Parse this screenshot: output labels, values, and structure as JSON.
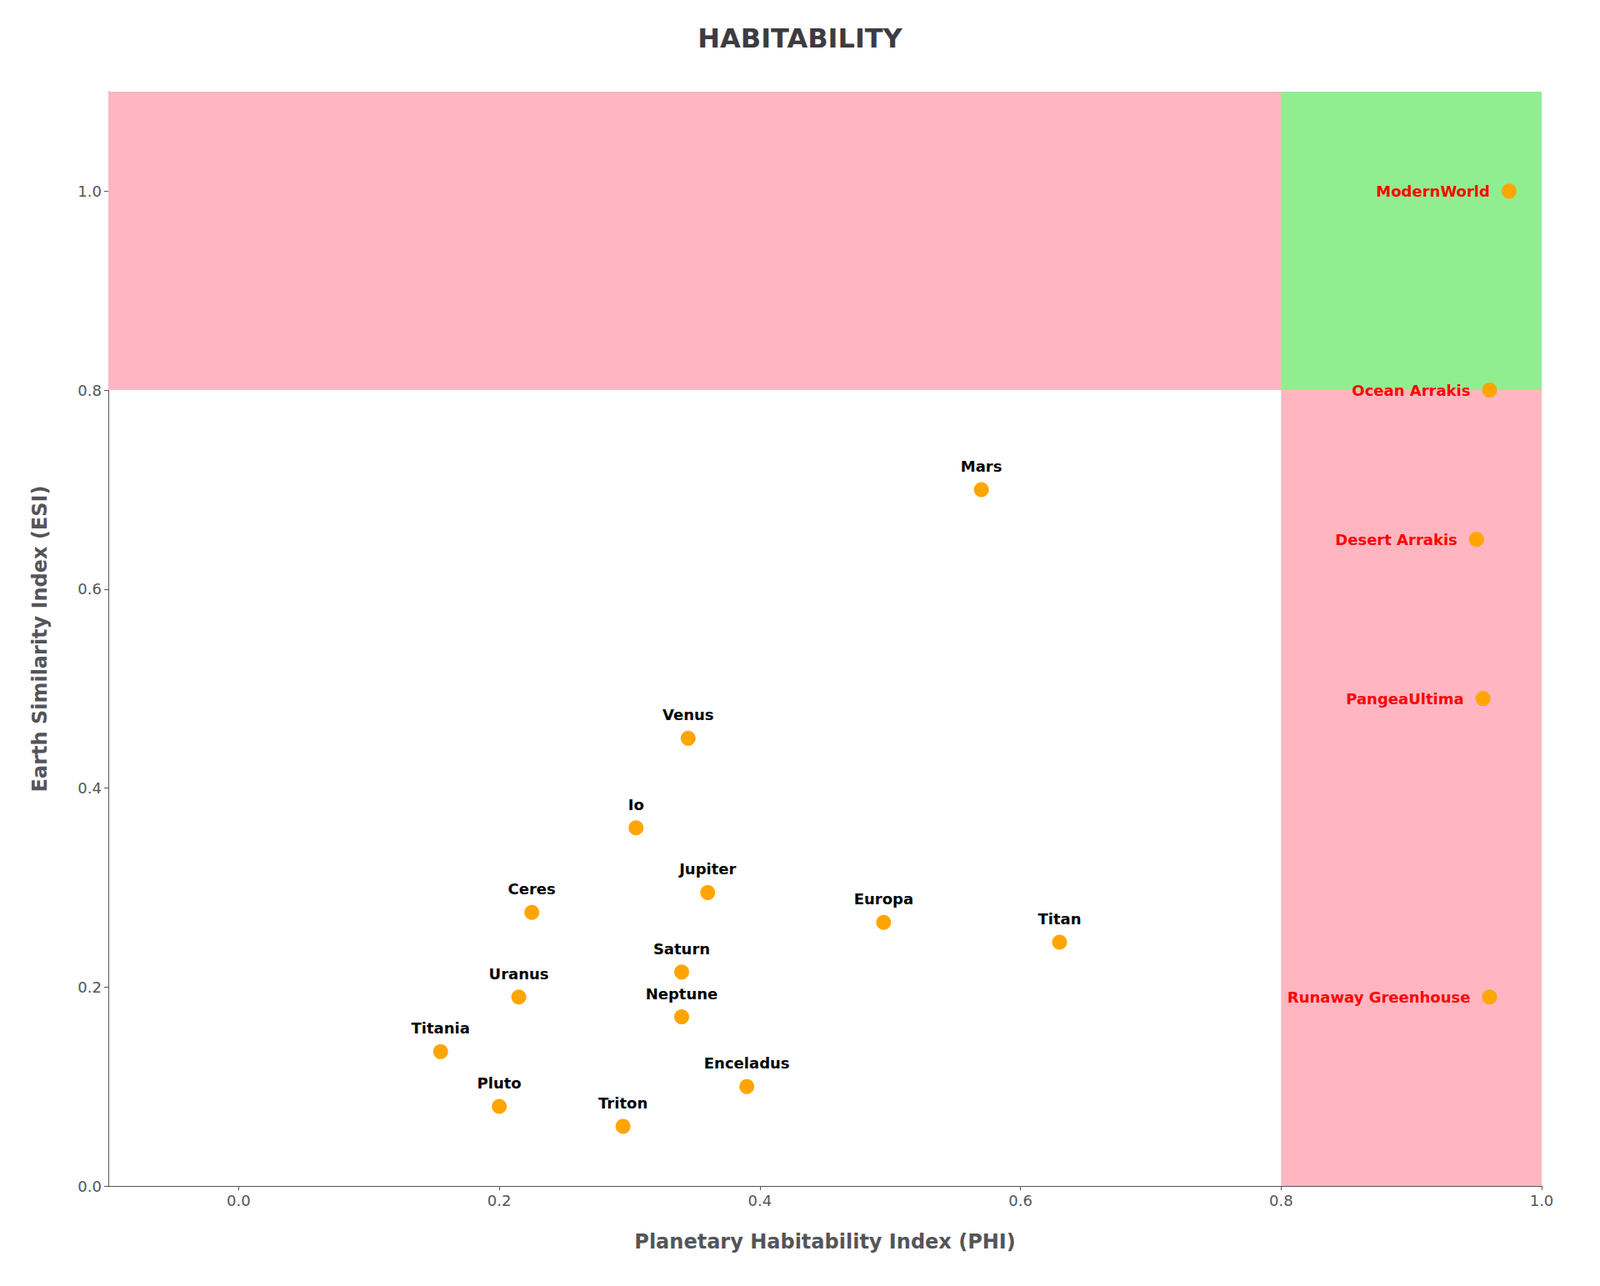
{
  "chart_data": {
    "type": "scatter",
    "title": "HABITABILITY",
    "xlabel": "Planetary Habitability Index (PHI)",
    "ylabel": "Earth Similarity Index (ESI)",
    "xlim": [
      -0.1,
      1.0
    ],
    "ylim": [
      0.0,
      1.1
    ],
    "xticks": [
      {
        "value": 0,
        "label": "0.0"
      },
      0.2,
      0.4,
      0.6,
      0.8,
      {
        "value": 1.0,
        "label": "1.0"
      }
    ],
    "yticks": [
      {
        "value": 0,
        "label": "0.0"
      },
      0.2,
      0.4,
      0.6,
      0.8,
      {
        "value": 1.0,
        "label": "1.0"
      }
    ],
    "grid": false,
    "color": "#FFA500",
    "regions": [
      {
        "x": [
          -0.1,
          1.0
        ],
        "y": [
          0.8,
          1.1
        ],
        "color": "#FFB6C1"
      },
      {
        "x": [
          0.8,
          1.0
        ],
        "y": [
          0.0,
          0.8
        ],
        "color": "#FFB6C1"
      },
      {
        "x": [
          0.8,
          1.0
        ],
        "y": [
          0.8,
          1.1
        ],
        "color": "#90EE90"
      }
    ],
    "labels": [
      "ModernWorld",
      "Ocean Arrakis",
      "Desert Arrakis",
      "PangeaUltima",
      "Runaway Greenhouse",
      "Mars",
      "Venus",
      "Io",
      "Jupiter",
      "Ceres",
      "Europa",
      "Saturn",
      "Titan",
      "Uranus",
      "Neptune",
      "Enceladus",
      "Titania",
      "Pluto",
      "Triton"
    ],
    "x": [
      0.975,
      0.96,
      0.95,
      0.955,
      0.96,
      0.57,
      0.345,
      0.305,
      0.36,
      0.225,
      0.495,
      0.34,
      0.63,
      0.215,
      0.34,
      0.39,
      0.155,
      0.2,
      0.295
    ],
    "values": [
      1.0,
      0.8,
      0.65,
      0.49,
      0.19,
      0.7,
      0.45,
      0.36,
      0.295,
      0.275,
      0.265,
      0.215,
      0.245,
      0.19,
      0.17,
      0.1,
      0.135,
      0.08,
      0.06
    ],
    "label_colors": [
      "red",
      "red",
      "red",
      "red",
      "red",
      "black",
      "black",
      "black",
      "black",
      "black",
      "black",
      "black",
      "black",
      "black",
      "black",
      "black",
      "black",
      "black",
      "black"
    ]
  }
}
